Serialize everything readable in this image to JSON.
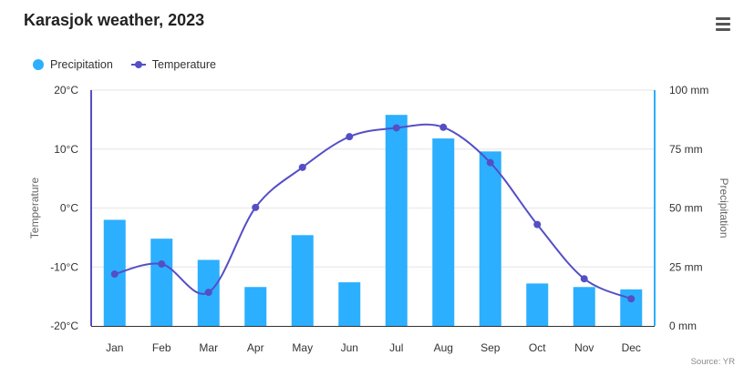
{
  "title": "Karasjok weather, 2023",
  "menu_icon": "hamburger-menu-icon",
  "source": "Source: YR",
  "colors": {
    "precipitation": "#2caffe",
    "temperature": "#544fc5",
    "grid": "#e6e6e6",
    "text": "#333333"
  },
  "chart_data": {
    "type": "bar",
    "categories": [
      "Jan",
      "Feb",
      "Mar",
      "Apr",
      "May",
      "Jun",
      "Jul",
      "Aug",
      "Sep",
      "Oct",
      "Nov",
      "Dec"
    ],
    "series": [
      {
        "name": "Precipitation",
        "type": "bar",
        "axis": "right",
        "values": [
          45,
          37,
          28,
          16.5,
          38.5,
          18.5,
          89.5,
          79.5,
          74,
          18,
          16.5,
          15.5
        ]
      },
      {
        "name": "Temperature",
        "type": "line",
        "axis": "left",
        "values": [
          -11.2,
          -9.5,
          -14.3,
          0.1,
          6.9,
          12.1,
          13.6,
          13.7,
          7.7,
          -2.8,
          -12.0,
          -15.4
        ]
      }
    ],
    "y_left": {
      "label": "Temperature",
      "ylim": [
        -20,
        20
      ],
      "ticks": [
        "-20°C",
        "-10°C",
        "0°C",
        "10°C",
        "20°C"
      ]
    },
    "y_right": {
      "label": "Precipitation",
      "ylim": [
        0,
        100
      ],
      "ticks": [
        "0 mm",
        "25 mm",
        "50 mm",
        "75 mm",
        "100 mm"
      ]
    },
    "grid": true,
    "legend_position": "top-left"
  }
}
